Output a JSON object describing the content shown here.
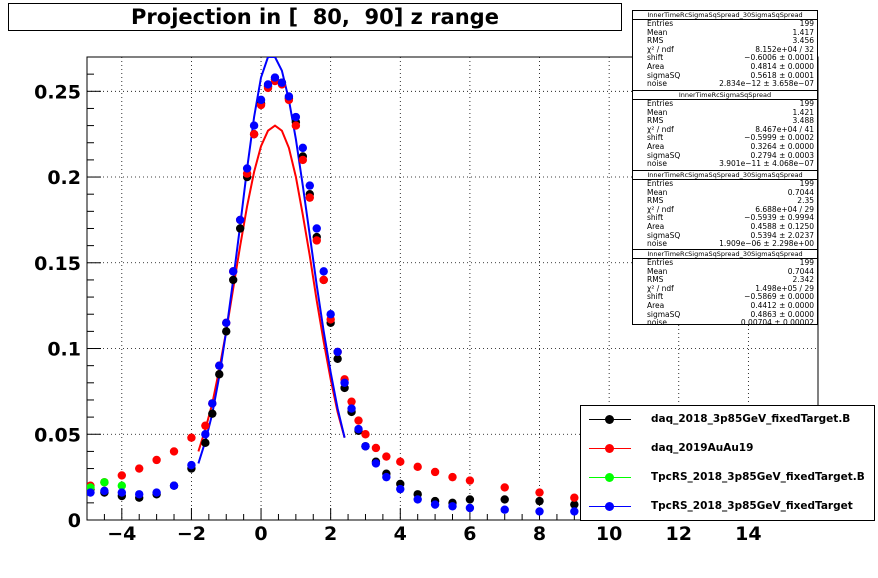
{
  "title": "Projection in [  80,  90] z range",
  "stats": [
    {
      "header": "InnerTimeRcSigmaSqSpread_30SigmaSqSpread",
      "rows": [
        {
          "k": "Entries",
          "v": "199"
        },
        {
          "k": "Mean",
          "v": "1.417"
        },
        {
          "k": "RMS",
          "v": "3.456"
        },
        {
          "k": "χ² / ndf",
          "v": "8.152e+04 / 32"
        },
        {
          "k": "shift",
          "v": "−0.6006 ± 0.0001"
        },
        {
          "k": "Area",
          "v": "0.4814 ± 0.0000"
        },
        {
          "k": "sigmaSQ",
          "v": "0.5618 ± 0.0001"
        },
        {
          "k": "noise",
          "v": "2.834e−12 ± 3.658e−07"
        }
      ]
    },
    {
      "header": "InnerTimeRcSigmaSqSpread",
      "rows": [
        {
          "k": "Entries",
          "v": "199"
        },
        {
          "k": "Mean",
          "v": "1.421"
        },
        {
          "k": "RMS",
          "v": "3.488"
        },
        {
          "k": "χ² / ndf",
          "v": "8.467e+04 / 41"
        },
        {
          "k": "shift",
          "v": "−0.5999 ± 0.0002"
        },
        {
          "k": "Area",
          "v": "0.3264 ± 0.0000"
        },
        {
          "k": "sigmaSQ",
          "v": "0.2794 ± 0.0003"
        },
        {
          "k": "noise",
          "v": "3.901e−11 ± 4.068e−07"
        }
      ]
    },
    {
      "header": "InnerTimeRcSigmaSqSpread_30SigmaSqSpread",
      "rows": [
        {
          "k": "Entries",
          "v": "199"
        },
        {
          "k": "Mean",
          "v": "0.7044"
        },
        {
          "k": "RMS",
          "v": "2.35"
        },
        {
          "k": "χ² / ndf",
          "v": "6.688e+04 / 29"
        },
        {
          "k": "shift",
          "v": "−0.5939 ± 0.9994"
        },
        {
          "k": "Area",
          "v": "0.4588 ± 0.1250"
        },
        {
          "k": "sigmaSQ",
          "v": "0.5394 ± 2.0237"
        },
        {
          "k": "noise",
          "v": "1.909e−06 ± 2.298e+00"
        }
      ]
    },
    {
      "header": "InnerTimeRcSigmaSqSpread_30SigmaSqSpread",
      "rows": [
        {
          "k": "Entries",
          "v": "199"
        },
        {
          "k": "Mean",
          "v": "0.7044"
        },
        {
          "k": "RMS",
          "v": "2.342"
        },
        {
          "k": "χ² / ndf",
          "v": "1.498e+05 / 29"
        },
        {
          "k": "shift",
          "v": "−0.5869 ± 0.0000"
        },
        {
          "k": "Area",
          "v": "0.4412 ± 0.0000"
        },
        {
          "k": "sigmaSQ",
          "v": "0.4863 ± 0.0000"
        },
        {
          "k": "noise",
          "v": "0.00704 ± 0.00002"
        }
      ]
    }
  ],
  "legend": [
    {
      "label": "daq_2018_3p85GeV_fixedTarget.B",
      "color": "#000000"
    },
    {
      "label": "daq_2019AuAu19",
      "color": "#ff0000"
    },
    {
      "label": "TpcRS_2018_3p85GeV_fixedTarget.B",
      "color": "#00ff00"
    },
    {
      "label": "TpcRS_2018_3p85GeV_fixedTarget",
      "color": "#0000ff"
    }
  ],
  "chart_data": {
    "type": "scatter",
    "title": "Projection in [  80,  90] z range",
    "xlabel": "",
    "ylabel": "",
    "xlim": [
      -5,
      16
    ],
    "ylim": [
      0,
      0.27
    ],
    "grid": true,
    "legend_position": "bottom-right",
    "x_ticks": [
      -4,
      -2,
      0,
      2,
      4,
      6,
      8,
      10,
      12,
      14
    ],
    "x_tick_labels": [
      "−4",
      "−2",
      "0",
      "2",
      "4",
      "6",
      "8",
      "10",
      "12",
      "14"
    ],
    "y_ticks": [
      0,
      0.05,
      0.1,
      0.15,
      0.2,
      0.25
    ],
    "y_tick_labels": [
      "0",
      "0.05",
      "0.1",
      "0.15",
      "0.2",
      "0.25"
    ],
    "series": [
      {
        "name": "daq_2018_3p85GeV_fixedTarget.B",
        "color": "#000000",
        "x": [
          -4.9,
          -4.5,
          -4.0,
          -3.5,
          -3.0,
          -2.5,
          -2.0,
          -1.6,
          -1.4,
          -1.2,
          -1.0,
          -0.8,
          -0.6,
          -0.4,
          -0.2,
          0.0,
          0.2,
          0.4,
          0.6,
          0.8,
          1.0,
          1.2,
          1.4,
          1.6,
          1.8,
          2.0,
          2.2,
          2.4,
          2.6,
          2.8,
          3.0,
          3.3,
          3.6,
          4.0,
          4.5,
          5.0,
          5.5,
          6.0,
          7.0,
          8.0,
          9.0
        ],
        "y": [
          0.018,
          0.016,
          0.014,
          0.013,
          0.015,
          0.02,
          0.03,
          0.045,
          0.062,
          0.085,
          0.11,
          0.14,
          0.17,
          0.2,
          0.225,
          0.243,
          0.253,
          0.257,
          0.255,
          0.246,
          0.232,
          0.212,
          0.19,
          0.165,
          0.14,
          0.115,
          0.094,
          0.077,
          0.063,
          0.052,
          0.043,
          0.034,
          0.027,
          0.021,
          0.015,
          0.011,
          0.01,
          0.012,
          0.012,
          0.011,
          0.009
        ]
      },
      {
        "name": "daq_2019AuAu19",
        "color": "#ff0000",
        "x": [
          -4.9,
          -4.5,
          -4.0,
          -3.5,
          -3.0,
          -2.5,
          -2.0,
          -1.6,
          -1.4,
          -1.2,
          -1.0,
          -0.8,
          -0.6,
          -0.4,
          -0.2,
          0.0,
          0.2,
          0.4,
          0.6,
          0.8,
          1.0,
          1.2,
          1.4,
          1.6,
          1.8,
          2.0,
          2.2,
          2.4,
          2.6,
          2.8,
          3.0,
          3.3,
          3.6,
          4.0,
          4.5,
          5.0,
          5.5,
          6.0,
          7.0,
          8.0,
          9.0
        ],
        "y": [
          0.02,
          0.022,
          0.026,
          0.03,
          0.035,
          0.04,
          0.048,
          0.055,
          0.068,
          0.09,
          0.115,
          0.145,
          0.175,
          0.202,
          0.225,
          0.242,
          0.252,
          0.256,
          0.254,
          0.245,
          0.23,
          0.21,
          0.188,
          0.163,
          0.14,
          0.117,
          0.098,
          0.082,
          0.069,
          0.058,
          0.05,
          0.042,
          0.037,
          0.034,
          0.031,
          0.028,
          0.025,
          0.023,
          0.019,
          0.016,
          0.013
        ]
      },
      {
        "name": "TpcRS_2018_3p85GeV_fixedTarget.B",
        "color": "#00ff00",
        "x": [
          -4.9,
          -4.5,
          -4.0
        ],
        "y": [
          0.019,
          0.022,
          0.02
        ]
      },
      {
        "name": "TpcRS_2018_3p85GeV_fixedTarget",
        "color": "#0000ff",
        "x": [
          -4.9,
          -4.5,
          -4.0,
          -3.5,
          -3.0,
          -2.5,
          -2.0,
          -1.6,
          -1.4,
          -1.2,
          -1.0,
          -0.8,
          -0.6,
          -0.4,
          -0.2,
          0.0,
          0.2,
          0.4,
          0.6,
          0.8,
          1.0,
          1.2,
          1.4,
          1.6,
          1.8,
          2.0,
          2.2,
          2.4,
          2.6,
          2.8,
          3.0,
          3.3,
          3.6,
          4.0,
          4.5,
          5.0,
          5.5,
          6.0,
          7.0,
          8.0,
          9.0
        ],
        "y": [
          0.016,
          0.017,
          0.016,
          0.015,
          0.016,
          0.02,
          0.032,
          0.05,
          0.068,
          0.09,
          0.115,
          0.145,
          0.175,
          0.205,
          0.23,
          0.245,
          0.254,
          0.258,
          0.255,
          0.247,
          0.235,
          0.217,
          0.195,
          0.17,
          0.145,
          0.12,
          0.098,
          0.08,
          0.065,
          0.053,
          0.043,
          0.033,
          0.025,
          0.018,
          0.012,
          0.009,
          0.008,
          0.007,
          0.006,
          0.005,
          0.005
        ]
      }
    ],
    "fit_curves": [
      {
        "color": "#ff0000",
        "x": [
          -1.8,
          -1.6,
          -1.4,
          -1.2,
          -1.0,
          -0.8,
          -0.6,
          -0.4,
          -0.2,
          0.0,
          0.2,
          0.4,
          0.6,
          0.8,
          1.0,
          1.2,
          1.4,
          1.6,
          1.8,
          2.0,
          2.2,
          2.4
        ],
        "y": [
          0.04,
          0.053,
          0.068,
          0.088,
          0.11,
          0.135,
          0.16,
          0.183,
          0.203,
          0.218,
          0.227,
          0.23,
          0.227,
          0.217,
          0.2,
          0.178,
          0.154,
          0.128,
          0.104,
          0.082,
          0.063,
          0.048
        ]
      },
      {
        "color": "#0000ff",
        "x": [
          -1.8,
          -1.6,
          -1.4,
          -1.2,
          -1.0,
          -0.8,
          -0.6,
          -0.4,
          -0.2,
          0.0,
          0.2,
          0.4,
          0.6,
          0.8,
          1.0,
          1.2,
          1.4,
          1.6,
          1.8,
          2.0,
          2.2,
          2.4
        ],
        "y": [
          0.033,
          0.046,
          0.062,
          0.084,
          0.11,
          0.14,
          0.172,
          0.205,
          0.235,
          0.258,
          0.27,
          0.27,
          0.262,
          0.245,
          0.222,
          0.195,
          0.166,
          0.137,
          0.11,
          0.086,
          0.065,
          0.048
        ]
      }
    ]
  }
}
